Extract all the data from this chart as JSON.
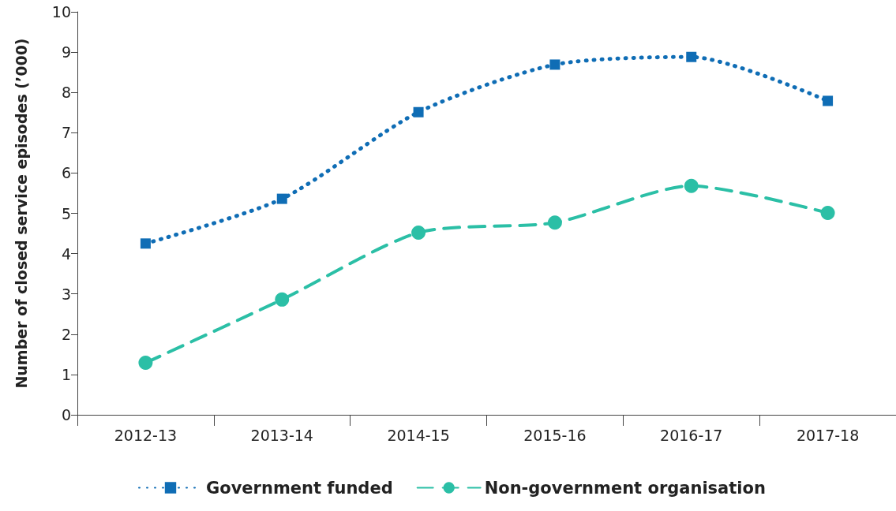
{
  "chart_data": {
    "type": "line",
    "ylabel": "Number of closed service episodes (’000)",
    "categories": [
      "2012-13",
      "2013-14",
      "2014-15",
      "2015-16",
      "2016-17",
      "2017-18"
    ],
    "series": [
      {
        "name": "Government funded",
        "color": "#0f6db5",
        "marker": "square",
        "line_style": "dotted",
        "values": [
          4.25,
          5.36,
          7.51,
          8.69,
          8.88,
          7.79
        ]
      },
      {
        "name": "Non-government organisation",
        "color": "#2bbfa6",
        "marker": "circle",
        "line_style": "dashed",
        "values": [
          1.29,
          2.86,
          4.52,
          4.77,
          5.68,
          5.01
        ]
      }
    ],
    "ylim": [
      0,
      10
    ],
    "yticks": [
      0,
      1,
      2,
      3,
      4,
      5,
      6,
      7,
      8,
      9,
      10
    ],
    "grid": false,
    "legend": "bottom"
  }
}
